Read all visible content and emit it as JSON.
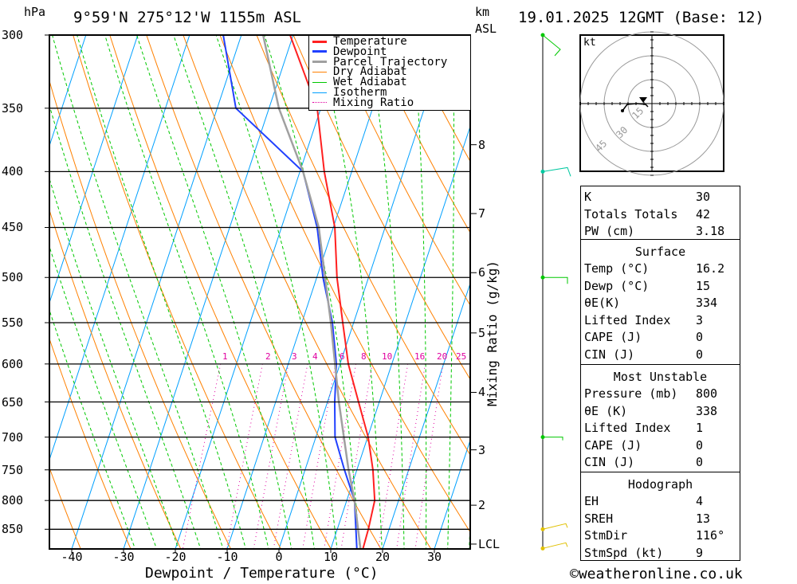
{
  "header": {
    "units": "hPa",
    "location": "9°59'N  275°12'W  1155m  ASL",
    "km_label": "km",
    "asl_label": "ASL",
    "date": "19.01.2025  12GMT  (Base: 12)"
  },
  "colors": {
    "temperature": "#ff2020",
    "dewpoint": "#2040ff",
    "parcel": "#a0a0a0",
    "dry": "#ff8000",
    "wet": "#00c800",
    "isotherm": "#00a0ff",
    "mixing": "#e000a0"
  },
  "chart_data": {
    "type": "line",
    "title": "Skew-T log-P",
    "xlabel": "Dewpoint / Temperature (°C)",
    "ylabel": "hPa",
    "y2label": "Mixing Ratio (g/kg)",
    "x_ticks": [
      "-40",
      "-30",
      "-20",
      "-10",
      "0",
      "10",
      "20",
      "30"
    ],
    "x_tick_values": [
      -40,
      -30,
      -20,
      -10,
      0,
      10,
      20,
      30
    ],
    "p_ticks": [
      "300",
      "350",
      "400",
      "450",
      "500",
      "550",
      "600",
      "650",
      "700",
      "750",
      "800",
      "850"
    ],
    "p_tick_values": [
      300,
      350,
      400,
      450,
      500,
      550,
      600,
      650,
      700,
      750,
      800,
      850
    ],
    "p_range": [
      300,
      885
    ],
    "km_ticks": [
      {
        "label": "8",
        "p": 378
      },
      {
        "label": "7",
        "p": 437
      },
      {
        "label": "6",
        "p": 495
      },
      {
        "label": "5",
        "p": 562
      },
      {
        "label": "4",
        "p": 637
      },
      {
        "label": "3",
        "p": 719
      },
      {
        "label": "2",
        "p": 808
      },
      {
        "label": "LCL",
        "p": 877
      }
    ],
    "mixing_ratio_labels": [
      "1",
      "2",
      "3",
      "4",
      "6",
      "8",
      "10",
      "16",
      "20",
      "25"
    ],
    "mixing_ratio_values": [
      1,
      2,
      3,
      4,
      6,
      8,
      10,
      16,
      20,
      25
    ],
    "legend": [
      "Temperature",
      "Dewpoint",
      "Parcel Trajectory",
      "Dry Adiabat",
      "Wet Adiabat",
      "Isotherm",
      "Mixing Ratio"
    ],
    "legend_position": "top-right",
    "series": [
      {
        "name": "Temperature",
        "p": [
          885,
          850,
          800,
          750,
          700,
          650,
          600,
          550,
          500,
          450,
          400,
          350,
          300
        ],
        "t": [
          16.2,
          16,
          15.4,
          13.1,
          10.1,
          6.0,
          1.6,
          -2.1,
          -6.1,
          -9.7,
          -15.3,
          -20.7,
          -30.6
        ]
      },
      {
        "name": "Dewpoint",
        "p": [
          885,
          800,
          750,
          700,
          650,
          600,
          550,
          500,
          450,
          400,
          350,
          300
        ],
        "t": [
          15,
          11.5,
          7.6,
          3.7,
          1.4,
          -0.7,
          -4.1,
          -8.8,
          -13.1,
          -19.4,
          -36.4,
          -43.5
        ]
      },
      {
        "name": "Parcel Trajectory",
        "p": [
          885,
          800,
          750,
          650,
          550,
          450,
          400,
          350,
          300
        ],
        "t": [
          15.7,
          11.5,
          8.4,
          2.2,
          -4.4,
          -12.8,
          -19.4,
          -28.1,
          -35.8
        ]
      }
    ],
    "wind_barb_levels": [
      300,
      400,
      500,
      700,
      850,
      885
    ]
  },
  "hodograph": {
    "unit": "kt",
    "rings": [
      "15",
      "30",
      "45"
    ]
  },
  "indices": [
    {
      "label": "K",
      "value": "30"
    },
    {
      "label": "Totals Totals",
      "value": "42"
    },
    {
      "label": "PW (cm)",
      "value": "3.18"
    }
  ],
  "surface": {
    "title": "Surface",
    "rows": [
      {
        "label": "Temp (°C)",
        "value": "16.2"
      },
      {
        "label": "Dewp (°C)",
        "value": "15"
      },
      {
        "label": "θE(K)",
        "value": "334"
      },
      {
        "label": "Lifted Index",
        "value": "3"
      },
      {
        "label": "CAPE (J)",
        "value": "0"
      },
      {
        "label": "CIN (J)",
        "value": "0"
      }
    ]
  },
  "most_unstable": {
    "title": "Most Unstable",
    "rows": [
      {
        "label": "Pressure (mb)",
        "value": "800"
      },
      {
        "label": "θE (K)",
        "value": "338"
      },
      {
        "label": "Lifted Index",
        "value": "1"
      },
      {
        "label": "CAPE (J)",
        "value": "0"
      },
      {
        "label": "CIN (J)",
        "value": "0"
      }
    ]
  },
  "hodo_table": {
    "title": "Hodograph",
    "rows": [
      {
        "label": "EH",
        "value": "4"
      },
      {
        "label": "SREH",
        "value": "13"
      },
      {
        "label": "StmDir",
        "value": "116°"
      },
      {
        "label": "StmSpd (kt)",
        "value": "9"
      }
    ]
  },
  "footer": {
    "credit": "©weatheronline.co.uk"
  }
}
